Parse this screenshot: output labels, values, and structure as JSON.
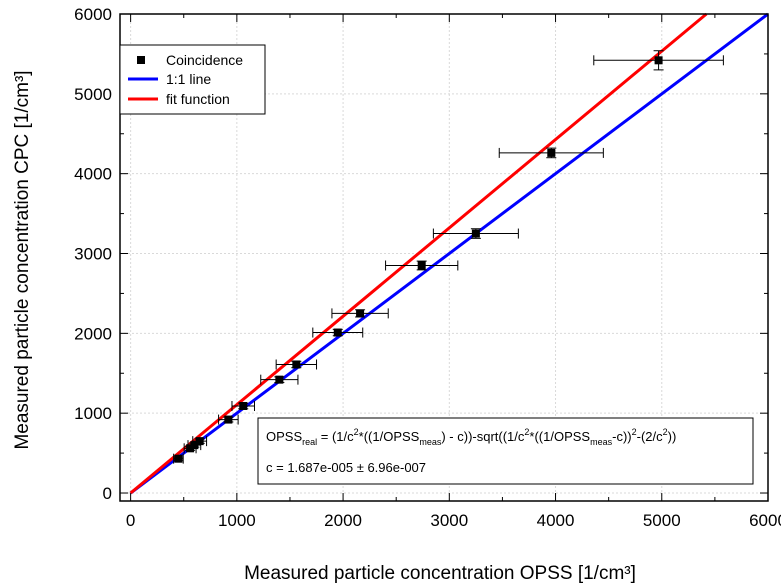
{
  "chart_data": {
    "type": "scatter",
    "xlabel": "Measured particle concentration OPSS [1/cm³]",
    "ylabel": "Measured particle concentration CPC [1/cm³]",
    "xlim": [
      -100,
      6000
    ],
    "ylim": [
      -100,
      6000
    ],
    "xticks": [
      0,
      1000,
      2000,
      3000,
      4000,
      5000,
      6000
    ],
    "yticks": [
      0,
      1000,
      2000,
      3000,
      4000,
      5000,
      6000
    ],
    "grid": true,
    "legend_position": "top-left",
    "series": [
      {
        "name": "Coincidence",
        "kind": "points",
        "color": "#000000",
        "x": [
          450,
          560,
          600,
          650,
          920,
          1060,
          1400,
          1560,
          1950,
          2160,
          2740,
          3250,
          3960,
          4970
        ],
        "y": [
          430,
          560,
          600,
          650,
          920,
          1090,
          1420,
          1610,
          2010,
          2250,
          2850,
          3250,
          4260,
          5420
        ],
        "xerr": [
          45,
          56,
          60,
          65,
          92,
          106,
          175,
          190,
          235,
          265,
          340,
          400,
          490,
          610
        ],
        "yerr": [
          20,
          25,
          25,
          28,
          30,
          35,
          35,
          40,
          40,
          45,
          55,
          60,
          60,
          120
        ]
      },
      {
        "name": "1:1 line",
        "kind": "line",
        "color": "#0000ff",
        "x": [
          0,
          6000
        ],
        "y": [
          0,
          6000
        ]
      },
      {
        "name": "fit function",
        "kind": "line",
        "color": "#ff0000",
        "x": [
          0,
          5420
        ],
        "y": [
          0,
          6000
        ]
      }
    ],
    "annotation": {
      "formula": {
        "opss_1": "OPSS",
        "real_sub": "real",
        "eq_1": " = (1/c",
        "sup_2a": "2",
        "mid_1": "*((1/OPSS",
        "meas_sub_1": "meas",
        "mid_2": ") - c))-sqrt((1/c",
        "sup_2b": "2",
        "mid_3": "*((1/OPSS",
        "meas_sub_2": "meas",
        "mid_4": "-c))",
        "sup_2c": "2",
        "mid_5": "-(2/c",
        "sup_2d": "2",
        "end": "))"
      },
      "c_value": "c = 1.687e-005 ± 6.96e-007"
    }
  }
}
